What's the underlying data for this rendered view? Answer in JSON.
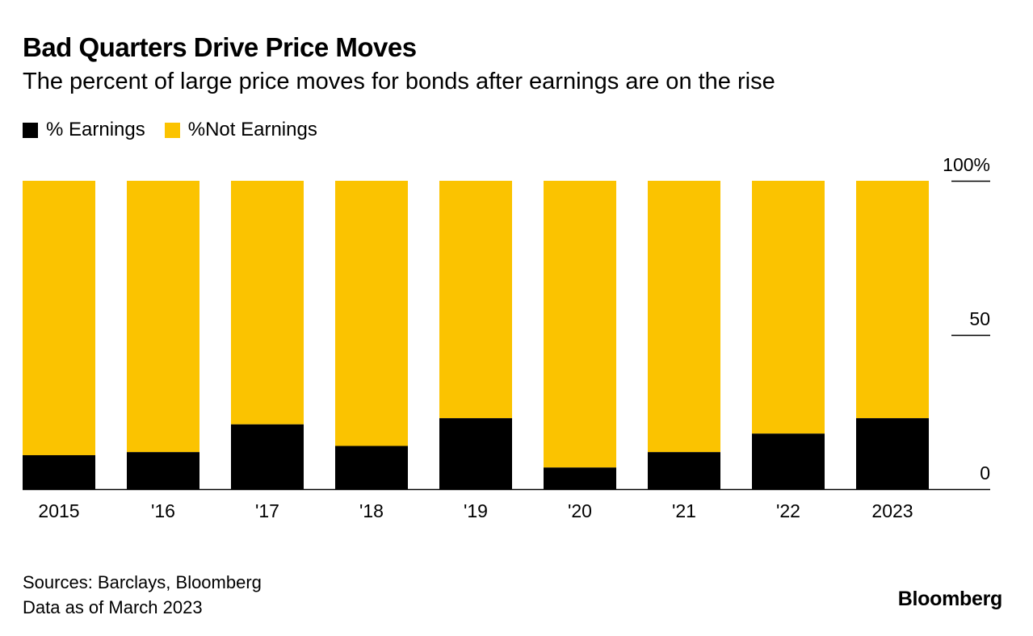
{
  "title": "Bad Quarters Drive Price Moves",
  "subtitle": "The percent of large price moves for bonds after earnings are on the rise",
  "legend": [
    {
      "label": "% Earnings",
      "color": "#000000"
    },
    {
      "label": "%Not Earnings",
      "color": "#fbc300"
    }
  ],
  "colors": {
    "earnings": "#000000",
    "not_earnings": "#fbc300",
    "axis": "#000000"
  },
  "chart_data": {
    "type": "bar",
    "stacked": true,
    "categories": [
      "2015",
      "'16",
      "'17",
      "'18",
      "'19",
      "'20",
      "'21",
      "'22",
      "2023"
    ],
    "series": [
      {
        "name": "% Earnings",
        "values": [
          11,
          12,
          21,
          14,
          23,
          7,
          12,
          18,
          23
        ]
      },
      {
        "name": "%Not Earnings",
        "values": [
          89,
          88,
          79,
          86,
          77,
          93,
          88,
          82,
          77
        ]
      }
    ],
    "ylim": [
      0,
      100
    ],
    "yticks": [
      {
        "value": 100,
        "label": "100%"
      },
      {
        "value": 50,
        "label": "50"
      },
      {
        "value": 0,
        "label": "0"
      }
    ],
    "axis_position": "right"
  },
  "footer": {
    "sources": "Sources: Barclays, Bloomberg",
    "data_note": "Data as of March 2023",
    "brand": "Bloomberg"
  }
}
